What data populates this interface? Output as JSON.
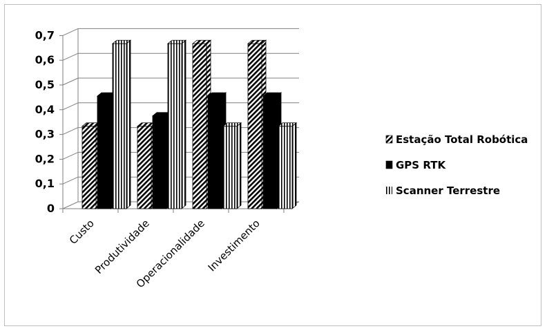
{
  "chart_data": {
    "type": "bar",
    "title": "",
    "xlabel": "",
    "ylabel": "",
    "ylim": [
      0,
      0.7
    ],
    "yticks": [
      "0",
      "0,1",
      "0,2",
      "0,3",
      "0,4",
      "0,5",
      "0,6",
      "0,7"
    ],
    "categories": [
      "Custo",
      "Produtividade",
      "Operacionalidade",
      "Investimento"
    ],
    "series": [
      {
        "name": "Estação Total Robótica",
        "values": [
          0.333,
          0.333,
          0.667,
          0.667
        ],
        "pattern": "diagonal-hatch"
      },
      {
        "name": "GPS RTK",
        "values": [
          0.455,
          0.375,
          0.455,
          0.455
        ],
        "pattern": "solid-black"
      },
      {
        "name": "Scanner Terrestre",
        "values": [
          0.667,
          0.667,
          0.333,
          0.333
        ],
        "pattern": "vertical-stripes"
      }
    ],
    "grid": true,
    "legend_position": "right",
    "style": "3d-clustered-column"
  }
}
